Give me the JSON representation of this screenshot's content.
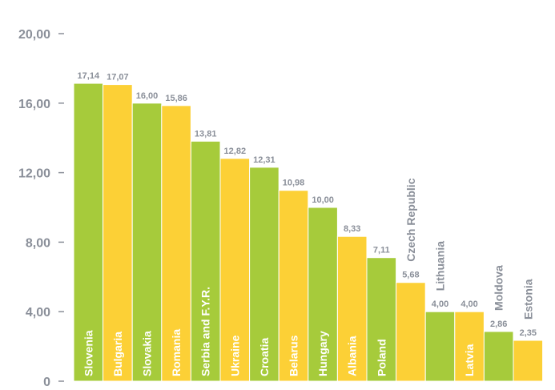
{
  "chart_data": {
    "type": "bar",
    "categories": [
      "Slovenia",
      "Bulgaria",
      "Slovakia",
      "Romania",
      "Serbia and F.Y.R.",
      "Ukraine",
      "Croatia",
      "Belarus",
      "Hungary",
      "Albania",
      "Poland",
      "Czech Republic",
      "Lithuania",
      "Latvia",
      "Moldova",
      "Estonia"
    ],
    "values": [
      17.14,
      17.07,
      16.0,
      15.86,
      13.81,
      12.82,
      12.31,
      10.98,
      10.0,
      8.33,
      7.11,
      5.68,
      4.0,
      4.0,
      2.86,
      2.35
    ],
    "value_labels": [
      "17,14",
      "17,07",
      "16,00",
      "15,86",
      "13,81",
      "12,82",
      "12,31",
      "10,98",
      "10,00",
      "8,33",
      "7,11",
      "5,68",
      "4,00",
      "4,00",
      "2,86",
      "2,35"
    ],
    "y_ticks": [
      {
        "value": 0,
        "label": "0"
      },
      {
        "value": 4,
        "label": "4,00"
      },
      {
        "value": 8,
        "label": "8,00"
      },
      {
        "value": 12,
        "label": "12,00"
      },
      {
        "value": 16,
        "label": "16,00"
      },
      {
        "value": 20,
        "label": "20,00"
      }
    ],
    "ylim": [
      0,
      20
    ],
    "colors": [
      "#a6cb3b",
      "#fcd036"
    ],
    "grid": false,
    "legend": "none",
    "title": "",
    "xlabel": "",
    "ylabel": ""
  }
}
